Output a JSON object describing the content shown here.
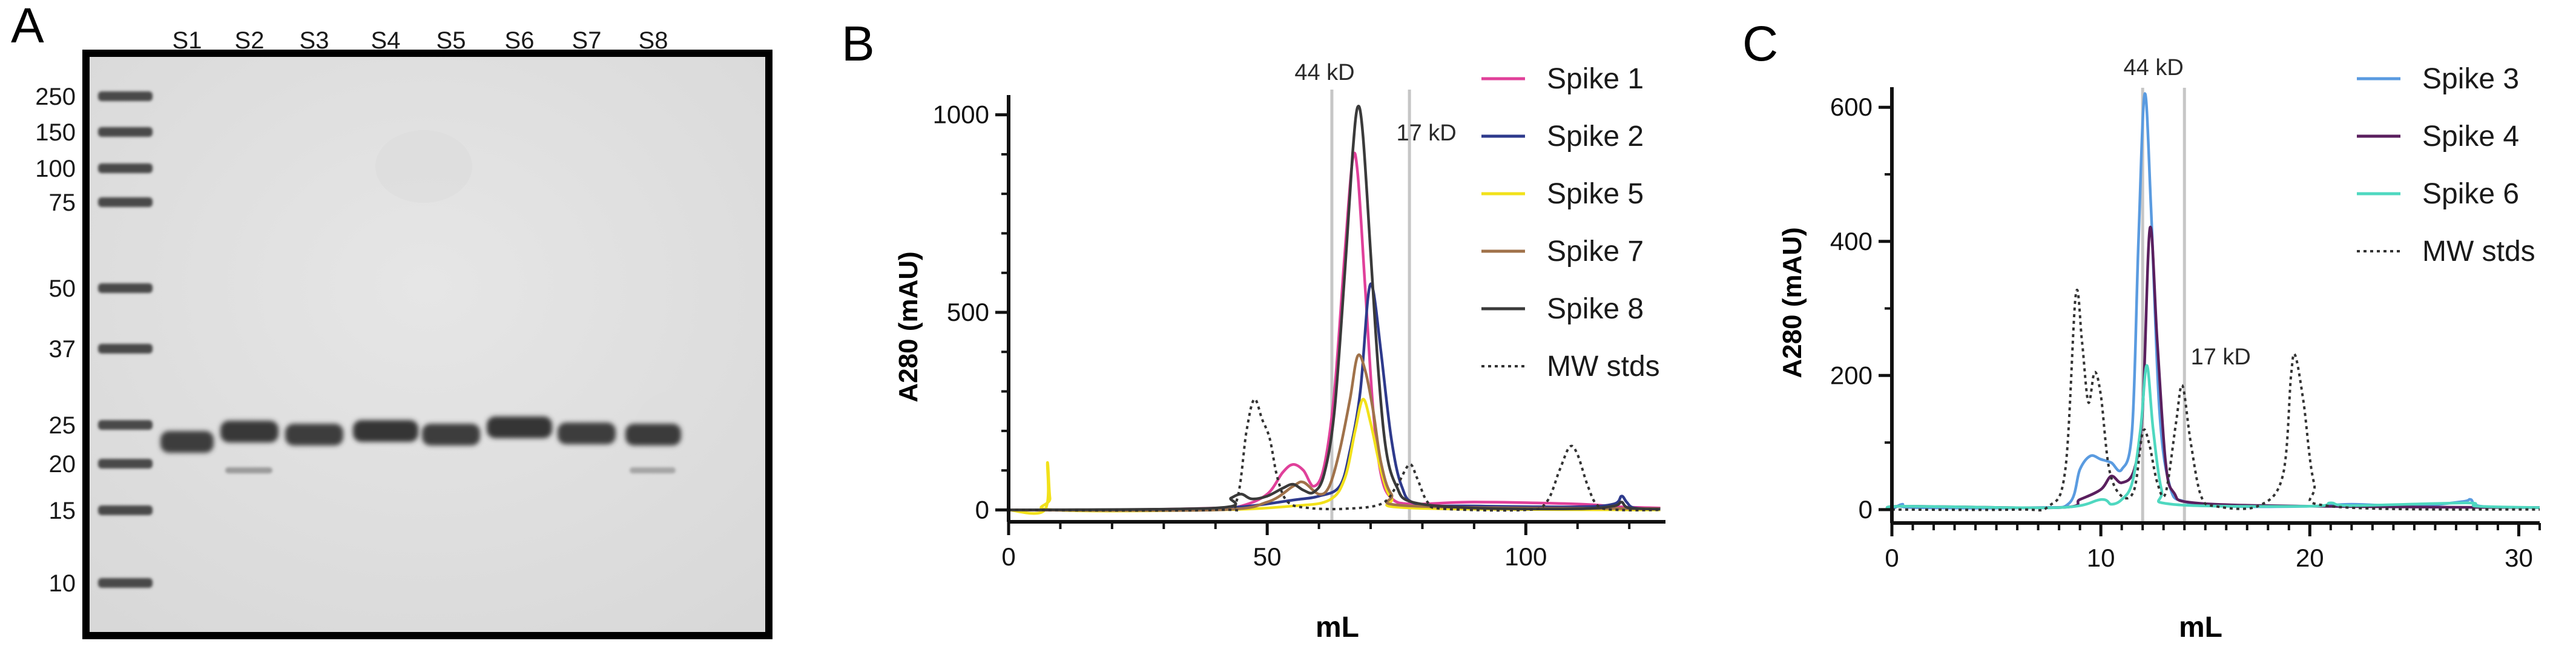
{
  "figure": {
    "panel_a": {
      "letter": "A",
      "lane_labels": [
        "S1",
        "S2",
        "S3",
        "S4",
        "S5",
        "S6",
        "S7",
        "S8"
      ],
      "ladder_label_values": [
        "250",
        "150",
        "100",
        "75",
        "50",
        "37",
        "25",
        "20",
        "15",
        "10"
      ]
    }
  },
  "chart_data": [
    {
      "type": "line",
      "panel": "B",
      "letter": "B",
      "title": "",
      "xlabel": "mL",
      "ylabel": "A280 (mAU)",
      "xlim": [
        0,
        127
      ],
      "ylim": [
        -30,
        1050
      ],
      "xticks": [
        0,
        50,
        100
      ],
      "yticks": [
        0,
        500,
        1000
      ],
      "grid": false,
      "legend_position": "top-right",
      "markers": [
        {
          "label": "44 kD",
          "x": 62.5
        },
        {
          "label": "17 kD",
          "x": 77.5
        }
      ],
      "series": [
        {
          "name": "Spike 1",
          "color": "#e0409a",
          "dash": false,
          "points": [
            [
              0,
              0
            ],
            [
              20,
              0
            ],
            [
              40,
              5
            ],
            [
              45,
              10
            ],
            [
              50,
              40
            ],
            [
              53,
              95
            ],
            [
              55,
              115
            ],
            [
              57,
              100
            ],
            [
              59,
              60
            ],
            [
              61,
              110
            ],
            [
              63,
              300
            ],
            [
              65,
              650
            ],
            [
              66.5,
              885
            ],
            [
              67.5,
              850
            ],
            [
              69,
              550
            ],
            [
              70.5,
              250
            ],
            [
              72,
              90
            ],
            [
              74,
              30
            ],
            [
              78,
              15
            ],
            [
              90,
              20
            ],
            [
              110,
              15
            ],
            [
              118,
              8
            ],
            [
              126,
              5
            ]
          ]
        },
        {
          "name": "Spike 2",
          "color": "#2e3a8c",
          "dash": false,
          "points": [
            [
              0,
              0
            ],
            [
              30,
              0
            ],
            [
              45,
              8
            ],
            [
              55,
              25
            ],
            [
              60,
              35
            ],
            [
              64,
              60
            ],
            [
              66,
              150
            ],
            [
              68,
              300
            ],
            [
              69.5,
              540
            ],
            [
              70.5,
              555
            ],
            [
              72,
              400
            ],
            [
              74,
              180
            ],
            [
              76,
              60
            ],
            [
              79,
              15
            ],
            [
              90,
              10
            ],
            [
              110,
              8
            ],
            [
              117,
              15
            ],
            [
              118.5,
              35
            ],
            [
              119.5,
              20
            ],
            [
              121,
              5
            ],
            [
              126,
              3
            ]
          ]
        },
        {
          "name": "Spike 5",
          "color": "#f2e11a",
          "dash": false,
          "points": [
            [
              0,
              0
            ],
            [
              7,
              0
            ],
            [
              7.5,
              120
            ],
            [
              8,
              30
            ],
            [
              8.8,
              0
            ],
            [
              40,
              0
            ],
            [
              55,
              10
            ],
            [
              62,
              25
            ],
            [
              65,
              80
            ],
            [
              67,
              200
            ],
            [
              68.5,
              280
            ],
            [
              70,
              220
            ],
            [
              72,
              100
            ],
            [
              74,
              30
            ],
            [
              78,
              5
            ],
            [
              126,
              0
            ]
          ]
        },
        {
          "name": "Spike 7",
          "color": "#a0724a",
          "dash": false,
          "points": [
            [
              0,
              0
            ],
            [
              40,
              0
            ],
            [
              50,
              20
            ],
            [
              55,
              60
            ],
            [
              57,
              70
            ],
            [
              60,
              40
            ],
            [
              62,
              60
            ],
            [
              64,
              150
            ],
            [
              66,
              280
            ],
            [
              67.5,
              390
            ],
            [
              69,
              350
            ],
            [
              70.5,
              250
            ],
            [
              72,
              120
            ],
            [
              74,
              40
            ],
            [
              78,
              10
            ],
            [
              126,
              3
            ]
          ]
        },
        {
          "name": "Spike 8",
          "color": "#3a3a3a",
          "dash": false,
          "points": [
            [
              0,
              0
            ],
            [
              40,
              5
            ],
            [
              43,
              30
            ],
            [
              45,
              40
            ],
            [
              47,
              28
            ],
            [
              50,
              35
            ],
            [
              53,
              55
            ],
            [
              55,
              65
            ],
            [
              57,
              50
            ],
            [
              59,
              45
            ],
            [
              61,
              90
            ],
            [
              63,
              250
            ],
            [
              65,
              600
            ],
            [
              66.5,
              900
            ],
            [
              67.5,
              1020
            ],
            [
              68.5,
              950
            ],
            [
              70,
              650
            ],
            [
              71.5,
              350
            ],
            [
              73,
              150
            ],
            [
              75,
              60
            ],
            [
              78,
              20
            ],
            [
              90,
              5
            ],
            [
              110,
              3
            ],
            [
              117,
              10
            ],
            [
              118.5,
              20
            ],
            [
              120,
              5
            ],
            [
              126,
              2
            ]
          ]
        },
        {
          "name": "MW stds",
          "color": "#333333",
          "dash": true,
          "points": [
            [
              0,
              0
            ],
            [
              40,
              0
            ],
            [
              44,
              20
            ],
            [
              46,
              200
            ],
            [
              47.5,
              280
            ],
            [
              49,
              230
            ],
            [
              50.5,
              180
            ],
            [
              52,
              80
            ],
            [
              54,
              20
            ],
            [
              58,
              5
            ],
            [
              65,
              3
            ],
            [
              72,
              15
            ],
            [
              75,
              60
            ],
            [
              77.5,
              115
            ],
            [
              79,
              80
            ],
            [
              81,
              20
            ],
            [
              84,
              3
            ],
            [
              100,
              0
            ],
            [
              104,
              20
            ],
            [
              106.5,
              100
            ],
            [
              108.5,
              160
            ],
            [
              110,
              140
            ],
            [
              112,
              60
            ],
            [
              114,
              10
            ],
            [
              118,
              0
            ],
            [
              126,
              0
            ]
          ]
        }
      ]
    },
    {
      "type": "line",
      "panel": "C",
      "letter": "C",
      "title": "",
      "xlabel": "mL",
      "ylabel": "A280 (mAU)",
      "xlim": [
        0,
        31
      ],
      "ylim": [
        -20,
        630
      ],
      "xticks": [
        0,
        10,
        20,
        30
      ],
      "yticks": [
        0,
        200,
        400,
        600
      ],
      "grid": false,
      "legend_position": "top-right",
      "markers": [
        {
          "label": "44 kD",
          "x": 12.0
        },
        {
          "label": "17 kD",
          "x": 14.0
        }
      ],
      "series": [
        {
          "name": "Spike 3",
          "color": "#5a9be0",
          "dash": false,
          "points": [
            [
              0,
              0
            ],
            [
              0.5,
              8
            ],
            [
              1,
              3
            ],
            [
              7,
              3
            ],
            [
              8.5,
              10
            ],
            [
              9,
              60
            ],
            [
              9.5,
              80
            ],
            [
              10,
              75
            ],
            [
              10.5,
              70
            ],
            [
              11,
              60
            ],
            [
              11.5,
              120
            ],
            [
              11.8,
              400
            ],
            [
              12.1,
              620
            ],
            [
              12.4,
              450
            ],
            [
              12.8,
              150
            ],
            [
              13.3,
              35
            ],
            [
              14,
              12
            ],
            [
              16,
              5
            ],
            [
              20,
              5
            ],
            [
              22,
              8
            ],
            [
              25,
              5
            ],
            [
              27.3,
              12
            ],
            [
              27.7,
              15
            ],
            [
              28.2,
              5
            ],
            [
              31,
              3
            ]
          ]
        },
        {
          "name": "Spike 4",
          "color": "#5a1f5e",
          "dash": false,
          "points": [
            [
              0,
              0
            ],
            [
              0.5,
              5
            ],
            [
              8,
              3
            ],
            [
              9,
              15
            ],
            [
              10,
              30
            ],
            [
              10.5,
              50
            ],
            [
              11,
              40
            ],
            [
              11.6,
              60
            ],
            [
              12,
              150
            ],
            [
              12.35,
              420
            ],
            [
              12.7,
              250
            ],
            [
              13.1,
              70
            ],
            [
              13.5,
              25
            ],
            [
              14.5,
              10
            ],
            [
              20,
              5
            ],
            [
              31,
              3
            ]
          ]
        },
        {
          "name": "Spike 6",
          "color": "#4fd8c0",
          "dash": false,
          "points": [
            [
              0,
              0
            ],
            [
              0.5,
              5
            ],
            [
              8,
              3
            ],
            [
              10,
              15
            ],
            [
              10.5,
              8
            ],
            [
              11,
              15
            ],
            [
              11.5,
              40
            ],
            [
              11.9,
              120
            ],
            [
              12.2,
              215
            ],
            [
              12.5,
              120
            ],
            [
              12.9,
              30
            ],
            [
              13.4,
              8
            ],
            [
              20,
              5
            ],
            [
              21,
              10
            ],
            [
              22,
              6
            ],
            [
              27.5,
              10
            ],
            [
              28,
              5
            ],
            [
              31,
              3
            ]
          ]
        },
        {
          "name": "MW stds",
          "color": "#333333",
          "dash": true,
          "points": [
            [
              0,
              0
            ],
            [
              6,
              0
            ],
            [
              7.5,
              5
            ],
            [
              8.3,
              60
            ],
            [
              8.8,
              320
            ],
            [
              9.1,
              250
            ],
            [
              9.4,
              160
            ],
            [
              9.7,
              205
            ],
            [
              10,
              170
            ],
            [
              10.4,
              60
            ],
            [
              11,
              20
            ],
            [
              11.6,
              30
            ],
            [
              12,
              115
            ],
            [
              12.3,
              100
            ],
            [
              12.7,
              40
            ],
            [
              13.1,
              25
            ],
            [
              13.6,
              130
            ],
            [
              13.9,
              185
            ],
            [
              14.3,
              100
            ],
            [
              14.8,
              20
            ],
            [
              15.5,
              5
            ],
            [
              17.5,
              5
            ],
            [
              18.7,
              50
            ],
            [
              19.1,
              200
            ],
            [
              19.3,
              230
            ],
            [
              19.7,
              160
            ],
            [
              20.2,
              40
            ],
            [
              21,
              5
            ],
            [
              31,
              0
            ]
          ]
        }
      ]
    }
  ]
}
